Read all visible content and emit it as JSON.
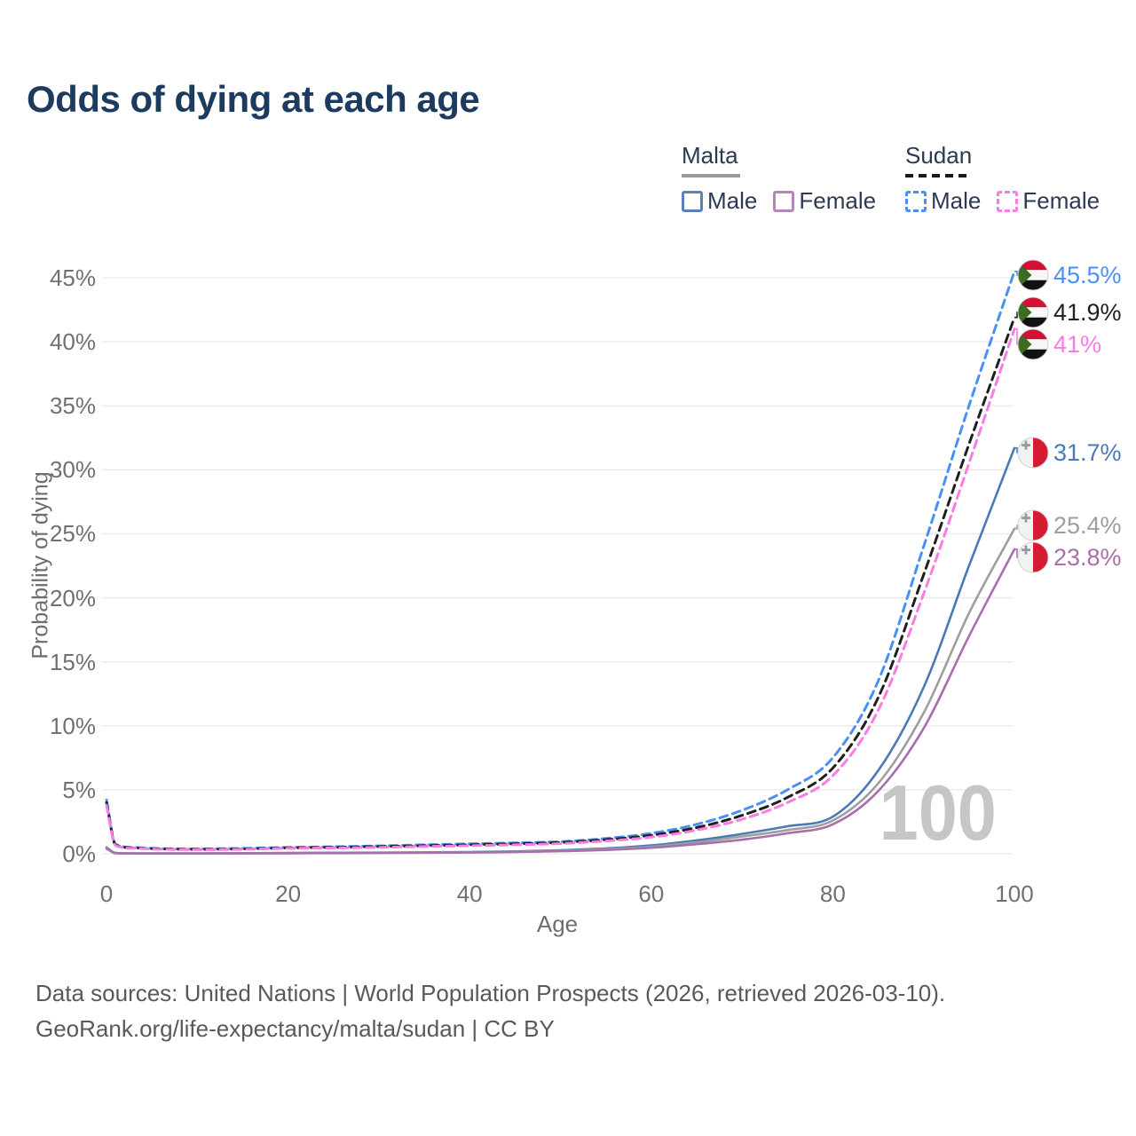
{
  "legend": {
    "groups": [
      {
        "label": "Malta",
        "line_style": "solid",
        "underline_color": "#9a9a9a",
        "items": [
          {
            "label": "Male",
            "color": "#4a7ab5"
          },
          {
            "label": "Female",
            "color": "#a76fab"
          }
        ]
      },
      {
        "label": "Sudan",
        "line_style": "dashed",
        "underline_color": "#1a1a1a",
        "items": [
          {
            "label": "Male",
            "color": "#4a90f4"
          },
          {
            "label": "Female",
            "color": "#fa7ce2"
          }
        ]
      }
    ]
  },
  "watermark": "100",
  "footer": {
    "line1": "Data sources: United Nations | World Population Prospects (2026, retrieved 2026-03-10).",
    "line2": "GeoRank.org/life-expectancy/malta/sudan | CC BY"
  },
  "chart_data": {
    "type": "line",
    "title": "Odds of dying at each age",
    "xlabel": "Age",
    "ylabel": "Probability of dying",
    "xlim": [
      0,
      100
    ],
    "ylim": [
      0,
      45
    ],
    "grid": "horizontal",
    "legend_position": "top-right",
    "x_axis": {
      "label": "Age",
      "ticks": [
        "0",
        "20",
        "40",
        "60",
        "80",
        "100"
      ]
    },
    "y_axis": {
      "label": "Probability of dying",
      "ticks": [
        "0%",
        "5%",
        "10%",
        "15%",
        "20%",
        "25%",
        "30%",
        "35%",
        "40%",
        "45%"
      ]
    },
    "series": [
      {
        "id": "sudan-male",
        "country": "Sudan",
        "sex": "Male",
        "line_style": "dashed",
        "color": "#4a90f4",
        "end_label": "45.5%",
        "end_value_pct": 45.5,
        "points": [
          [
            0,
            4.2
          ],
          [
            1,
            0.75
          ],
          [
            3,
            0.5
          ],
          [
            5,
            0.42
          ],
          [
            10,
            0.38
          ],
          [
            15,
            0.42
          ],
          [
            20,
            0.5
          ],
          [
            25,
            0.55
          ],
          [
            30,
            0.62
          ],
          [
            35,
            0.7
          ],
          [
            40,
            0.78
          ],
          [
            45,
            0.85
          ],
          [
            50,
            0.95
          ],
          [
            55,
            1.2
          ],
          [
            60,
            1.6
          ],
          [
            65,
            2.3
          ],
          [
            70,
            3.4
          ],
          [
            75,
            5.0
          ],
          [
            80,
            7.5
          ],
          [
            85,
            13.5
          ],
          [
            90,
            24.0
          ],
          [
            95,
            35.0
          ],
          [
            100,
            45.5
          ]
        ]
      },
      {
        "id": "sudan-all",
        "country": "Sudan",
        "sex": "All",
        "line_style": "dashed",
        "color": "#1f1f1f",
        "end_label": "41.9%",
        "end_value_pct": 41.9,
        "points": [
          [
            0,
            4.0
          ],
          [
            1,
            0.7
          ],
          [
            3,
            0.46
          ],
          [
            5,
            0.4
          ],
          [
            10,
            0.35
          ],
          [
            15,
            0.38
          ],
          [
            20,
            0.46
          ],
          [
            25,
            0.5
          ],
          [
            30,
            0.56
          ],
          [
            35,
            0.63
          ],
          [
            40,
            0.7
          ],
          [
            45,
            0.78
          ],
          [
            50,
            0.88
          ],
          [
            55,
            1.1
          ],
          [
            60,
            1.45
          ],
          [
            65,
            2.05
          ],
          [
            70,
            3.0
          ],
          [
            75,
            4.4
          ],
          [
            80,
            6.7
          ],
          [
            85,
            12.2
          ],
          [
            90,
            21.8
          ],
          [
            95,
            32.0
          ],
          [
            100,
            41.9
          ]
        ]
      },
      {
        "id": "sudan-female",
        "country": "Sudan",
        "sex": "Female",
        "line_style": "dashed",
        "color": "#fa7ce2",
        "end_label": "41%",
        "end_value_pct": 41.0,
        "points": [
          [
            0,
            3.8
          ],
          [
            1,
            0.65
          ],
          [
            3,
            0.43
          ],
          [
            5,
            0.37
          ],
          [
            10,
            0.32
          ],
          [
            15,
            0.35
          ],
          [
            20,
            0.42
          ],
          [
            25,
            0.46
          ],
          [
            30,
            0.5
          ],
          [
            35,
            0.57
          ],
          [
            40,
            0.63
          ],
          [
            45,
            0.7
          ],
          [
            50,
            0.8
          ],
          [
            55,
            1.0
          ],
          [
            60,
            1.3
          ],
          [
            65,
            1.85
          ],
          [
            70,
            2.7
          ],
          [
            75,
            4.0
          ],
          [
            80,
            6.1
          ],
          [
            85,
            11.2
          ],
          [
            90,
            20.3
          ],
          [
            95,
            30.5
          ],
          [
            100,
            41.0
          ]
        ]
      },
      {
        "id": "malta-male",
        "country": "Malta",
        "sex": "Male",
        "line_style": "solid",
        "color": "#4a7ab5",
        "end_label": "31.7%",
        "end_value_pct": 31.7,
        "points": [
          [
            0,
            0.5
          ],
          [
            1,
            0.06
          ],
          [
            3,
            0.03
          ],
          [
            5,
            0.03
          ],
          [
            10,
            0.03
          ],
          [
            15,
            0.05
          ],
          [
            20,
            0.07
          ],
          [
            25,
            0.08
          ],
          [
            30,
            0.09
          ],
          [
            35,
            0.11
          ],
          [
            40,
            0.14
          ],
          [
            45,
            0.19
          ],
          [
            50,
            0.28
          ],
          [
            55,
            0.42
          ],
          [
            60,
            0.65
          ],
          [
            65,
            1.05
          ],
          [
            70,
            1.55
          ],
          [
            75,
            2.15
          ],
          [
            80,
            2.9
          ],
          [
            85,
            6.5
          ],
          [
            90,
            13.0
          ],
          [
            95,
            22.5
          ],
          [
            100,
            31.7
          ]
        ]
      },
      {
        "id": "malta-all",
        "country": "Malta",
        "sex": "All",
        "line_style": "solid",
        "color": "#9e9e9e",
        "end_label": "25.4%",
        "end_value_pct": 25.4,
        "points": [
          [
            0,
            0.45
          ],
          [
            1,
            0.05
          ],
          [
            3,
            0.03
          ],
          [
            5,
            0.02
          ],
          [
            10,
            0.02
          ],
          [
            15,
            0.04
          ],
          [
            20,
            0.05
          ],
          [
            25,
            0.06
          ],
          [
            30,
            0.08
          ],
          [
            35,
            0.1
          ],
          [
            40,
            0.12
          ],
          [
            45,
            0.16
          ],
          [
            50,
            0.24
          ],
          [
            55,
            0.36
          ],
          [
            60,
            0.55
          ],
          [
            65,
            0.9
          ],
          [
            70,
            1.35
          ],
          [
            75,
            1.85
          ],
          [
            80,
            2.6
          ],
          [
            85,
            5.5
          ],
          [
            90,
            11.0
          ],
          [
            95,
            18.8
          ],
          [
            100,
            25.4
          ]
        ]
      },
      {
        "id": "malta-female",
        "country": "Malta",
        "sex": "Female",
        "line_style": "solid",
        "color": "#a76fab",
        "end_label": "23.8%",
        "end_value_pct": 23.8,
        "points": [
          [
            0,
            0.4
          ],
          [
            1,
            0.05
          ],
          [
            3,
            0.02
          ],
          [
            5,
            0.02
          ],
          [
            10,
            0.02
          ],
          [
            15,
            0.03
          ],
          [
            20,
            0.04
          ],
          [
            25,
            0.05
          ],
          [
            30,
            0.06
          ],
          [
            35,
            0.08
          ],
          [
            40,
            0.1
          ],
          [
            45,
            0.14
          ],
          [
            50,
            0.2
          ],
          [
            55,
            0.3
          ],
          [
            60,
            0.47
          ],
          [
            65,
            0.75
          ],
          [
            70,
            1.1
          ],
          [
            75,
            1.6
          ],
          [
            80,
            2.3
          ],
          [
            85,
            4.9
          ],
          [
            90,
            9.8
          ],
          [
            95,
            17.0
          ],
          [
            100,
            23.8
          ]
        ]
      }
    ]
  }
}
